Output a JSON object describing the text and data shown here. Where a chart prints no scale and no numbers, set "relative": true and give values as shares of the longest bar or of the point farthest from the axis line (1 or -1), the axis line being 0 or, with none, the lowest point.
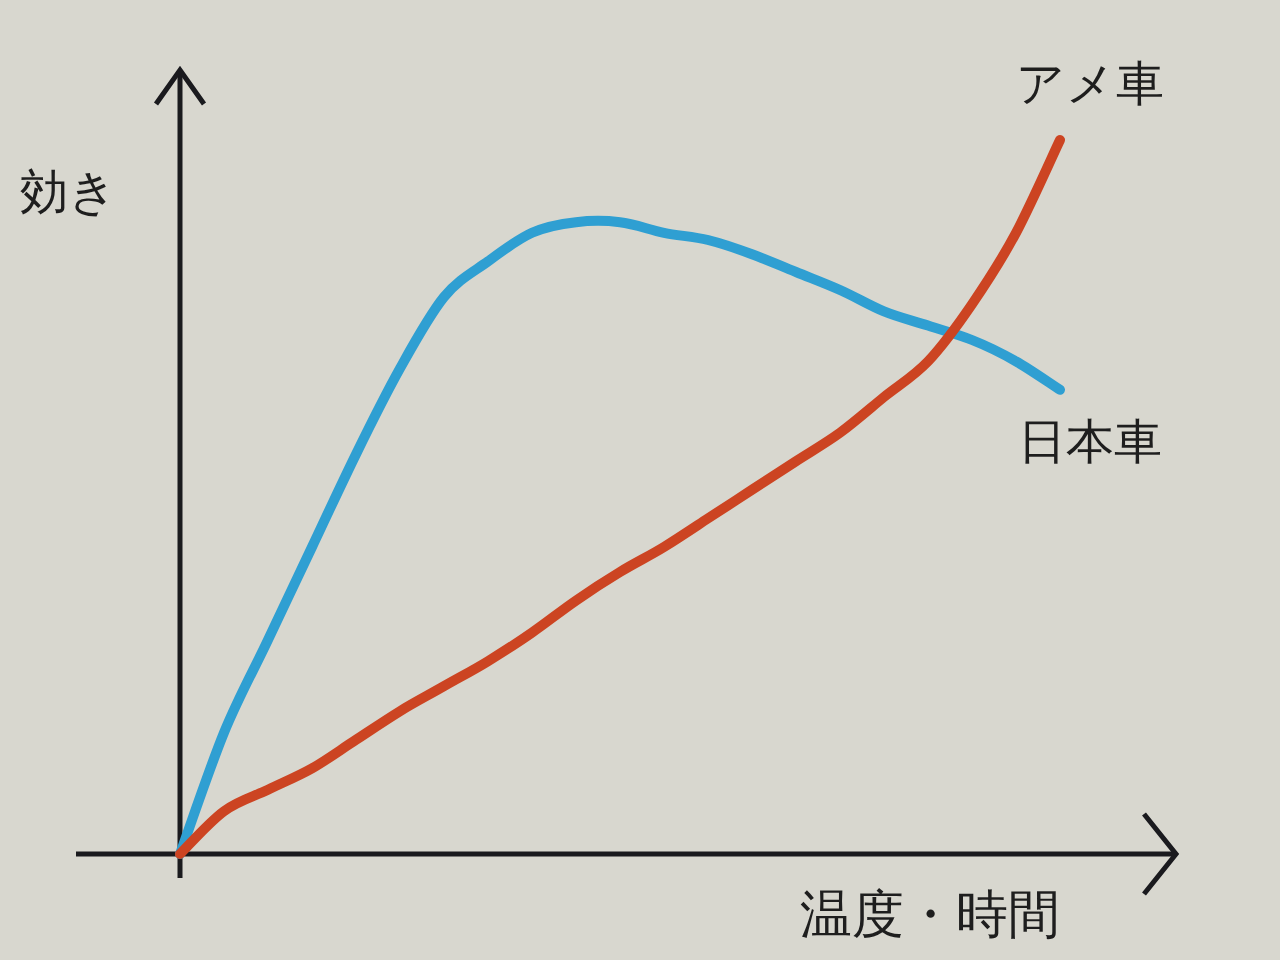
{
  "chart_data": {
    "type": "line",
    "xlabel": "温度・時間",
    "ylabel": "効き",
    "relative": true,
    "categories": [
      null,
      null,
      null,
      null,
      null,
      null,
      null,
      null,
      null,
      null,
      null,
      null,
      null,
      null,
      null,
      null,
      null,
      null,
      null,
      null,
      null
    ],
    "series": [
      {
        "name": "日本車",
        "color": "#2f9fd2",
        "values": [
          0,
          0.17,
          0.3,
          0.43,
          0.56,
          0.68,
          0.78,
          0.83,
          0.87,
          0.885,
          0.885,
          0.87,
          0.86,
          0.84,
          0.815,
          0.79,
          0.76,
          0.74,
          0.72,
          0.69,
          0.65
        ]
      },
      {
        "name": "アメ車",
        "color": "#cc4422",
        "values": [
          0,
          0.06,
          0.09,
          0.12,
          0.16,
          0.2,
          0.235,
          0.27,
          0.31,
          0.355,
          0.395,
          0.43,
          0.47,
          0.51,
          0.55,
          0.59,
          0.64,
          0.69,
          0.77,
          0.87,
          1
        ]
      }
    ]
  }
}
